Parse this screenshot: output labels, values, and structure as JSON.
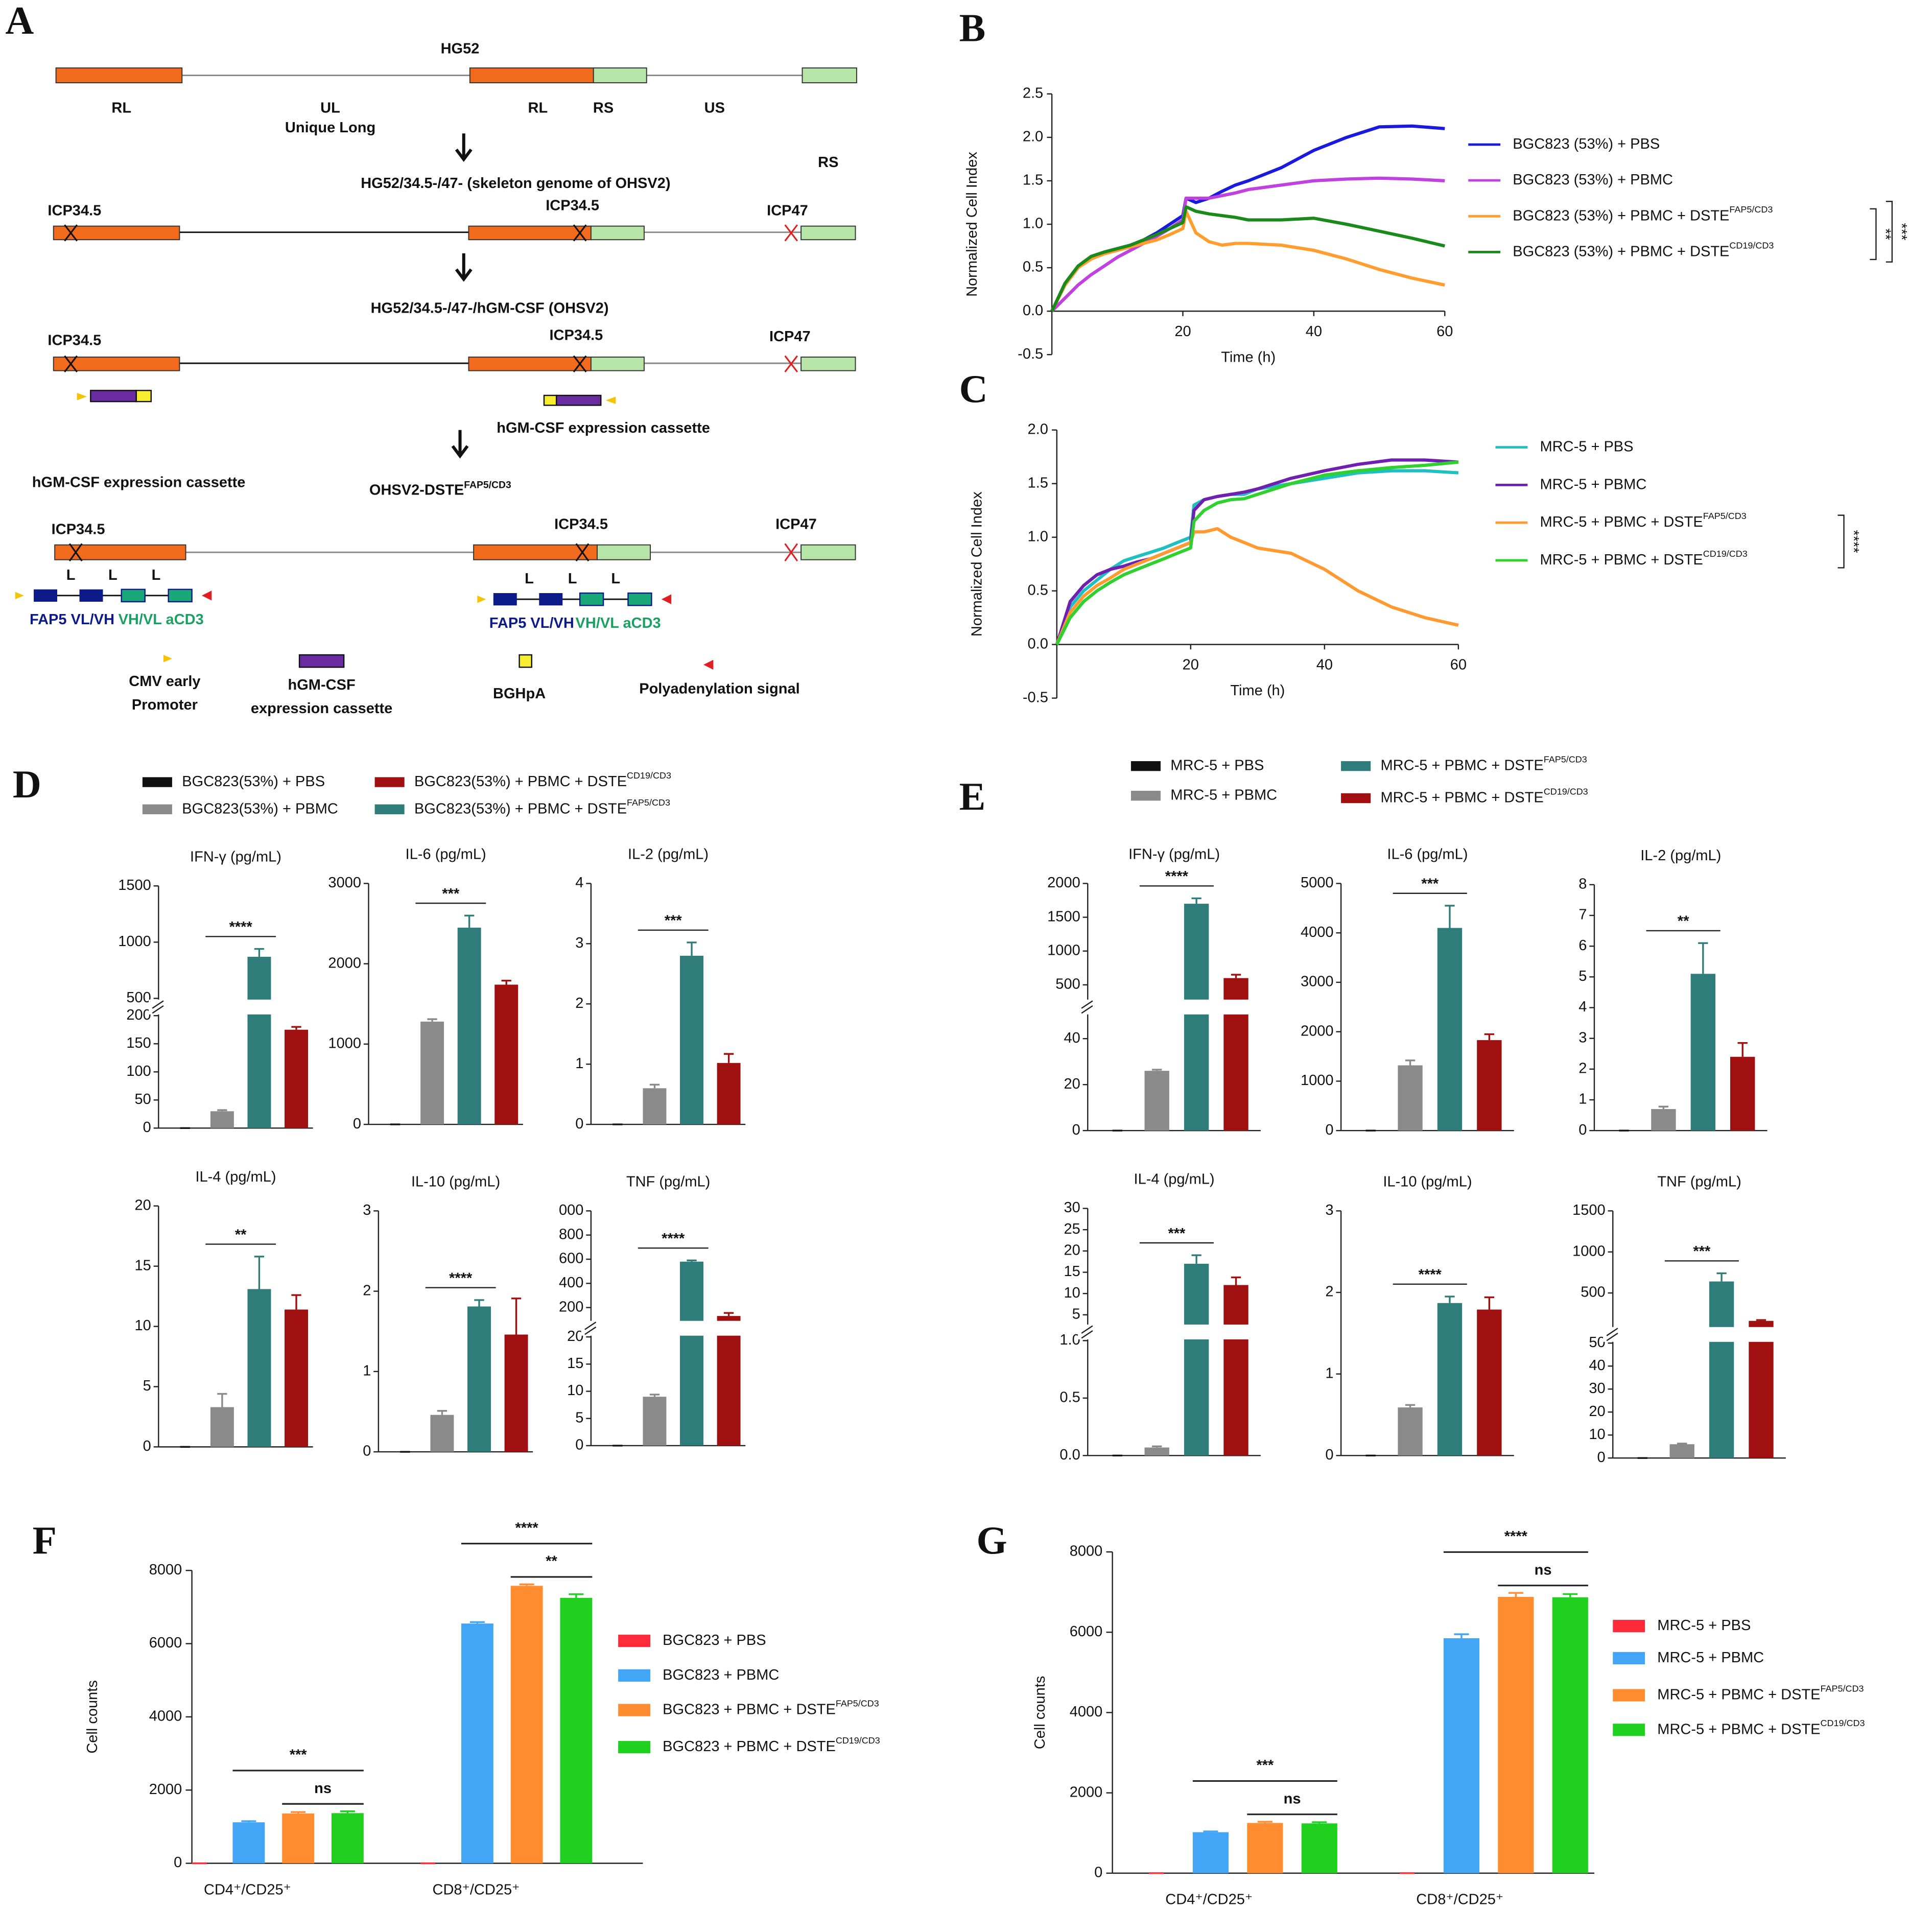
{
  "panels": [
    "A",
    "B",
    "C",
    "D",
    "E",
    "F",
    "G"
  ],
  "diagram": {
    "labels": [
      "HG52",
      "RL",
      "UL",
      "Unique Long",
      "RL",
      "RS",
      "US",
      "RS",
      "HG52/34.5-/47- (skeleton genome of OHSV2)",
      "ICP34.5",
      "ICP34.5",
      "ICP47",
      "HG52/34.5-/47-/hGM-CSF (OHSV2)",
      "ICP34.5",
      "ICP34.5",
      "ICP47",
      "hGM-CSF expression cassette",
      "hGM-CSF expression cassette",
      "OHSV2-DSTE",
      "ICP34.5",
      "ICP34.5",
      "ICP47",
      "L",
      "L",
      "L",
      "FAP5 VL/VH",
      "VH/VL aCD3",
      "L",
      "L",
      "L",
      "FAP5 VL/VH",
      "VH/VL aCD3",
      "CMV early",
      "Promoter",
      "hGM-CSF",
      "expression cassette",
      "BGHpA",
      "Polyadenylation signal"
    ],
    "sup": "FAP5/CD3"
  },
  "chart_data": [
    {
      "type": "line",
      "xlabel": "Time (h)",
      "ylabel": "Normalized Cell Index",
      "x": [
        0,
        2,
        4,
        6,
        8,
        10,
        12,
        14,
        16,
        18,
        20,
        20.5,
        22,
        24,
        26,
        28,
        30,
        35,
        40,
        45,
        50,
        55,
        60
      ],
      "xlim": [
        0,
        60
      ],
      "xticks": [
        20,
        40,
        60
      ],
      "ylim": [
        -0.5,
        2.5
      ],
      "yticks": [
        -0.5,
        {
          "value": 0,
          "label": "0.0"
        },
        0.5,
        {
          "value": 1,
          "label": "1.0"
        },
        1.5,
        {
          "value": 2,
          "label": "2.0"
        },
        2.5
      ],
      "series": [
        {
          "name": "BGC823 (53%) + PBS",
          "color": "#1a1adc",
          "values": [
            0,
            0.3,
            0.5,
            0.62,
            0.68,
            0.72,
            0.76,
            0.82,
            0.9,
            1.0,
            1.1,
            1.3,
            1.25,
            1.3,
            1.38,
            1.45,
            1.5,
            1.65,
            1.85,
            2.0,
            2.12,
            2.13,
            2.1
          ]
        },
        {
          "name": "BGC823 (53%) + PBMC",
          "color": "#c040e0",
          "values": [
            0,
            0.15,
            0.3,
            0.42,
            0.52,
            0.62,
            0.7,
            0.78,
            0.86,
            0.95,
            1.05,
            1.3,
            1.3,
            1.3,
            1.33,
            1.36,
            1.4,
            1.45,
            1.5,
            1.52,
            1.53,
            1.52,
            1.5
          ]
        },
        {
          "name": "BGC823 (53%) + PBMC + DSTE",
          "sup": "FAP5/CD3",
          "color": "#ff9d2e",
          "values": [
            0,
            0.3,
            0.5,
            0.6,
            0.66,
            0.7,
            0.74,
            0.78,
            0.82,
            0.88,
            0.95,
            1.15,
            0.9,
            0.8,
            0.76,
            0.78,
            0.78,
            0.76,
            0.7,
            0.6,
            0.48,
            0.38,
            0.3
          ]
        },
        {
          "name": "BGC823 (53%) + PBMC + DSTE",
          "sup": "CD19/CD3",
          "color": "#1a8a1a",
          "values": [
            0,
            0.32,
            0.52,
            0.63,
            0.68,
            0.72,
            0.76,
            0.82,
            0.88,
            0.95,
            1.02,
            1.2,
            1.15,
            1.12,
            1.1,
            1.08,
            1.05,
            1.05,
            1.07,
            1.0,
            0.92,
            0.84,
            0.75
          ]
        }
      ],
      "annotations": [
        "**",
        "***"
      ]
    },
    {
      "type": "line",
      "xlabel": "Time (h)",
      "ylabel": "Normalized Cell Index",
      "x": [
        0,
        2,
        4,
        6,
        8,
        10,
        12,
        14,
        16,
        18,
        20,
        20.5,
        22,
        24,
        26,
        28,
        30,
        35,
        40,
        45,
        50,
        55,
        60
      ],
      "xlim": [
        0,
        60
      ],
      "xticks": [
        20,
        40,
        60
      ],
      "ylim": [
        -0.5,
        2.0
      ],
      "yticks": [
        -0.5,
        {
          "value": 0,
          "label": "0.0"
        },
        0.5,
        {
          "value": 1,
          "label": "1.0"
        },
        1.5,
        {
          "value": 2,
          "label": "2.0"
        }
      ],
      "series": [
        {
          "name": "MRC-5 + PBS",
          "color": "#20c0c0",
          "values": [
            0,
            0.35,
            0.5,
            0.6,
            0.7,
            0.78,
            0.82,
            0.86,
            0.9,
            0.95,
            1.0,
            1.3,
            1.35,
            1.38,
            1.4,
            1.4,
            1.45,
            1.5,
            1.55,
            1.6,
            1.62,
            1.62,
            1.6
          ]
        },
        {
          "name": "MRC-5 + PBMC",
          "color": "#7020b0",
          "values": [
            0,
            0.4,
            0.55,
            0.65,
            0.7,
            0.73,
            0.77,
            0.8,
            0.85,
            0.9,
            0.95,
            1.25,
            1.35,
            1.38,
            1.4,
            1.42,
            1.45,
            1.55,
            1.62,
            1.68,
            1.72,
            1.72,
            1.7
          ]
        },
        {
          "name": "MRC-5 + PBMC + DSTE",
          "sup": "FAP5/CD3",
          "color": "#ff9a30",
          "values": [
            0,
            0.3,
            0.45,
            0.55,
            0.62,
            0.7,
            0.75,
            0.8,
            0.85,
            0.9,
            0.95,
            1.05,
            1.05,
            1.08,
            1.0,
            0.95,
            0.9,
            0.85,
            0.7,
            0.5,
            0.35,
            0.25,
            0.18
          ]
        },
        {
          "name": "MRC-5 + PBMC + DSTE",
          "sup": "CD19/CD3",
          "color": "#30d030",
          "values": [
            0,
            0.25,
            0.4,
            0.5,
            0.58,
            0.65,
            0.7,
            0.75,
            0.8,
            0.85,
            0.9,
            1.15,
            1.25,
            1.32,
            1.35,
            1.36,
            1.4,
            1.5,
            1.58,
            1.62,
            1.65,
            1.67,
            1.7
          ]
        }
      ],
      "annotations": [
        "****"
      ]
    },
    {
      "type": "cytokine",
      "series": [
        {
          "name": "BGC823(53%) + PBS",
          "color": "#111111"
        },
        {
          "name": "BGC823(53%) + PBMC",
          "color": "#8a8a8a"
        },
        {
          "name": "BGC823(53%) + PBMC + DSTE",
          "sup": "FAP5/CD3",
          "color": "#2e7d7a"
        },
        {
          "name": "BGC823(53%) + PBMC + DSTE",
          "sup": "CD19/CD3",
          "color": "#a01010"
        }
      ],
      "panels": [
        {
          "title": "IFN-γ (pg/mL)",
          "values": [
            0,
            30,
            870,
            175
          ],
          "errors": [
            0,
            2,
            70,
            5
          ],
          "sig": "****",
          "segments": [
            {
              "ylim": [
                0,
                200
              ],
              "yticks": [
                0,
                50,
                100,
                150,
                200
              ]
            },
            {
              "ylim": [
                500,
                1500
              ],
              "yticks": [
                500,
                1000,
                1500
              ]
            }
          ]
        },
        {
          "title": "IL-6 (pg/mL)",
          "values": [
            0,
            1280,
            2450,
            1740
          ],
          "errors": [
            0,
            30,
            150,
            50
          ],
          "sig": "***",
          "segments": [
            {
              "ylim": [
                0,
                3000
              ],
              "yticks": [
                0,
                1000,
                2000,
                3000
              ]
            }
          ]
        },
        {
          "title": "IL-2 (pg/mL)",
          "values": [
            0,
            0.6,
            2.8,
            1.02
          ],
          "errors": [
            0,
            0.06,
            0.22,
            0.15
          ],
          "sig": "***",
          "segments": [
            {
              "ylim": [
                0,
                4
              ],
              "yticks": [
                0,
                1,
                2,
                3,
                4
              ]
            }
          ]
        },
        {
          "title": "IL-4 (pg/mL)",
          "values": [
            0,
            3.3,
            13.1,
            11.4
          ],
          "errors": [
            0,
            1.1,
            2.7,
            1.2
          ],
          "sig": "**",
          "segments": [
            {
              "ylim": [
                0,
                20
              ],
              "yticks": [
                0,
                5,
                10,
                15,
                20
              ]
            }
          ]
        },
        {
          "title": "IL-10 (pg/mL)",
          "values": [
            0,
            0.46,
            1.81,
            1.46
          ],
          "errors": [
            0,
            0.05,
            0.08,
            0.45
          ],
          "sig": "****",
          "segments": [
            {
              "ylim": [
                0,
                3
              ],
              "yticks": [
                0,
                1,
                2,
                3
              ]
            }
          ]
        },
        {
          "title": "TNF (pg/mL)",
          "values": [
            0,
            9,
            580,
            130
          ],
          "errors": [
            0,
            0.4,
            10,
            25
          ],
          "sig": "****",
          "segments": [
            {
              "ylim": [
                0,
                20
              ],
              "yticks": [
                0,
                5,
                10,
                15,
                20
              ]
            },
            {
              "ylim": [
                100,
                1000
              ],
              "yticks": [
                200,
                400,
                600,
                800,
                {
                  "value": 1000,
                  "label": "000"
                }
              ]
            }
          ]
        }
      ]
    },
    {
      "type": "cytokine",
      "series": [
        {
          "name": "MRC-5 + PBS",
          "color": "#111111"
        },
        {
          "name": "MRC-5 + PBMC",
          "color": "#8a8a8a"
        },
        {
          "name": "MRC-5 + PBMC + DSTE",
          "sup": "FAP5/CD3",
          "color": "#2e7d7a"
        },
        {
          "name": "MRC-5 + PBMC + DSTE",
          "sup": "CD19/CD3",
          "color": "#a01010"
        }
      ],
      "panels": [
        {
          "title": "IFN-γ (pg/mL)",
          "values": [
            0,
            26,
            1700,
            600
          ],
          "errors": [
            0,
            0.5,
            80,
            50
          ],
          "sig": "****",
          "segments": [
            {
              "ylim": [
                0,
                50
              ],
              "yticks": [
                0,
                20,
                40
              ]
            },
            {
              "ylim": [
                300,
                2000
              ],
              "yticks": [
                500,
                1000,
                1500,
                2000
              ]
            }
          ]
        },
        {
          "title": "IL-6 (pg/mL)",
          "values": [
            0,
            1320,
            4100,
            1830
          ],
          "errors": [
            0,
            100,
            450,
            120
          ],
          "sig": "***",
          "segments": [
            {
              "ylim": [
                0,
                5000
              ],
              "yticks": [
                0,
                1000,
                2000,
                3000,
                4000,
                5000
              ]
            }
          ]
        },
        {
          "title": "IL-2 (pg/mL)",
          "values": [
            0,
            0.7,
            5.1,
            2.4
          ],
          "errors": [
            0,
            0.08,
            1.0,
            0.45
          ],
          "sig": "**",
          "segments": [
            {
              "ylim": [
                0,
                8
              ],
              "yticks": [
                0,
                1,
                2,
                3,
                4,
                5,
                6,
                7,
                8
              ]
            }
          ]
        },
        {
          "title": "IL-4 (pg/mL)",
          "values": [
            0,
            0.07,
            17,
            12
          ],
          "errors": [
            0,
            0.01,
            2,
            1.8
          ],
          "sig": "***",
          "segments": [
            {
              "ylim": [
                0,
                1
              ],
              "yticks": [
                {
                  "value": 0,
                  "label": "0.0"
                },
                0.5,
                {
                  "value": 1,
                  "label": "1.0"
                }
              ]
            },
            {
              "ylim": [
                3,
                30
              ],
              "yticks": [
                5,
                10,
                15,
                20,
                25,
                30
              ]
            }
          ]
        },
        {
          "title": "IL-10 (pg/mL)",
          "values": [
            0,
            0.59,
            1.87,
            1.79
          ],
          "errors": [
            0,
            0.03,
            0.08,
            0.15
          ],
          "sig": "****",
          "segments": [
            {
              "ylim": [
                0,
                3
              ],
              "yticks": [
                0,
                1,
                2,
                3
              ]
            }
          ]
        },
        {
          "title": "TNF (pg/mL)",
          "values": [
            0,
            6,
            640,
            160
          ],
          "errors": [
            0,
            0.3,
            100,
            10
          ],
          "sig": "***",
          "segments": [
            {
              "ylim": [
                0,
                50
              ],
              "yticks": [
                0,
                10,
                20,
                30,
                40,
                50
              ]
            },
            {
              "ylim": [
                100,
                1500
              ],
              "yticks": [
                500,
                1000,
                1500
              ]
            }
          ]
        }
      ]
    },
    {
      "type": "grouped-bar",
      "ylabel": "Cell counts",
      "categories": [
        "CD4⁺/CD25⁺",
        "CD8⁺/CD25⁺"
      ],
      "ylim": [
        0,
        8000
      ],
      "yticks": [
        0,
        2000,
        4000,
        6000,
        8000
      ],
      "series": [
        {
          "name": "BGC823 + PBS",
          "color": "#ff2a3a",
          "values": [
            0,
            0
          ],
          "errors": [
            0,
            0
          ]
        },
        {
          "name": "BGC823 + PBMC",
          "color": "#42a5f5",
          "values": [
            1120,
            6550
          ],
          "errors": [
            30,
            40
          ]
        },
        {
          "name": "BGC823 + PBMC + DSTE",
          "sup": "FAP5/CD3",
          "color": "#ff8c2e",
          "values": [
            1360,
            7580
          ],
          "errors": [
            40,
            40
          ]
        },
        {
          "name": "BGC823 + PBMC + DSTE",
          "sup": "CD19/CD3",
          "color": "#1fd01f",
          "values": [
            1370,
            7250
          ],
          "errors": [
            50,
            100
          ]
        }
      ],
      "sig": [
        [
          "***",
          "ns"
        ],
        [
          "****",
          "**"
        ]
      ]
    },
    {
      "type": "grouped-bar",
      "ylabel": "Cell counts",
      "categories": [
        "CD4⁺/CD25⁺",
        "CD8⁺/CD25⁺"
      ],
      "ylim": [
        0,
        8000
      ],
      "yticks": [
        0,
        2000,
        4000,
        6000,
        8000
      ],
      "series": [
        {
          "name": "MRC-5 + PBS",
          "color": "#ff2a3a",
          "values": [
            0,
            0
          ],
          "errors": [
            0,
            0
          ]
        },
        {
          "name": "MRC-5 + PBMC",
          "color": "#42a5f5",
          "values": [
            1020,
            5850
          ],
          "errors": [
            20,
            100
          ]
        },
        {
          "name": "MRC-5 + PBMC + DSTE",
          "sup": "FAP5/CD3",
          "color": "#ff8c2e",
          "values": [
            1250,
            6880
          ],
          "errors": [
            30,
            100
          ]
        },
        {
          "name": "MRC-5 + PBMC + DSTE",
          "sup": "CD19/CD3",
          "color": "#1fd01f",
          "values": [
            1240,
            6870
          ],
          "errors": [
            30,
            80
          ]
        }
      ],
      "sig": [
        [
          "***",
          "ns"
        ],
        [
          "****",
          "ns"
        ]
      ]
    }
  ]
}
